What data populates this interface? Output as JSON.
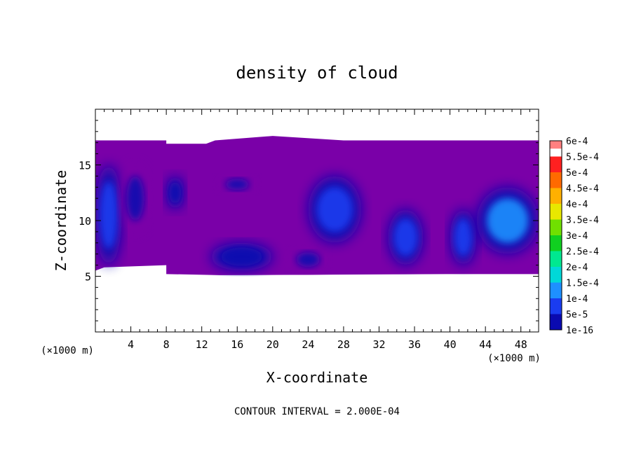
{
  "chart_data": {
    "type": "heatmap",
    "title": "density of cloud",
    "xlabel": "X-coordinate",
    "ylabel": "Z-coordinate",
    "x_unit_left": "(×1000 m)",
    "x_unit_right": "(×1000 m)",
    "xlim": [
      0,
      50
    ],
    "ylim": [
      0,
      20
    ],
    "x_ticks": [
      4,
      8,
      12,
      16,
      20,
      24,
      28,
      32,
      36,
      40,
      44,
      48
    ],
    "x_ticklabels": [
      "4",
      "8",
      "12",
      "16",
      "20",
      "24",
      "28",
      "32",
      "36",
      "40",
      "44",
      "48"
    ],
    "y_ticks": [
      5,
      10,
      15
    ],
    "y_ticklabels": [
      "5",
      "10",
      "15"
    ],
    "footer": "CONTOUR INTERVAL = 2.000E-04",
    "colorbar": {
      "levels": [
        {
          "label": "1e-16",
          "color": "#7a00a8"
        },
        {
          "label": "5e-5",
          "color": "#0a0ab0"
        },
        {
          "label": "1e-4",
          "color": "#1a3cf0"
        },
        {
          "label": "1.5e-4",
          "color": "#1e90ff"
        },
        {
          "label": "2e-4",
          "color": "#00d8d8"
        },
        {
          "label": "2.5e-4",
          "color": "#00e890"
        },
        {
          "label": "3e-4",
          "color": "#10d020"
        },
        {
          "label": "3.5e-4",
          "color": "#70e000"
        },
        {
          "label": "4e-4",
          "color": "#e8e800"
        },
        {
          "label": "4.5e-4",
          "color": "#ffb000"
        },
        {
          "label": "5e-4",
          "color": "#ff6a00"
        },
        {
          "label": "5.5e-4",
          "color": "#ff2020"
        },
        {
          "label": "6e-4",
          "color": "#ff8080"
        }
      ]
    },
    "field": {
      "x_extent": [
        0,
        50
      ],
      "z_extent": [
        5,
        17.2
      ],
      "max_value": 0.00017,
      "cells": [
        {
          "x": [
            0,
            3
          ],
          "z": [
            6,
            15
          ],
          "value": 0.00012
        },
        {
          "x": [
            3,
            6
          ],
          "z": [
            9,
            15
          ],
          "value": 8e-05
        },
        {
          "x": [
            8,
            10
          ],
          "z": [
            11,
            14
          ],
          "value": 9e-05
        },
        {
          "x": [
            14,
            18
          ],
          "z": [
            12.5,
            14
          ],
          "value": 7e-05
        },
        {
          "x": [
            13,
            20
          ],
          "z": [
            5.5,
            8
          ],
          "value": 9e-05
        },
        {
          "x": [
            22,
            26
          ],
          "z": [
            5.5,
            7.5
          ],
          "value": 8e-05
        },
        {
          "x": [
            24,
            30
          ],
          "z": [
            8,
            14
          ],
          "value": 0.00015
        },
        {
          "x": [
            33,
            37
          ],
          "z": [
            6,
            11
          ],
          "value": 0.0001
        },
        {
          "x": [
            40,
            43
          ],
          "z": [
            6,
            11
          ],
          "value": 0.0001
        },
        {
          "x": [
            43,
            50
          ],
          "z": [
            7,
            13
          ],
          "value": 0.00016
        }
      ]
    }
  }
}
